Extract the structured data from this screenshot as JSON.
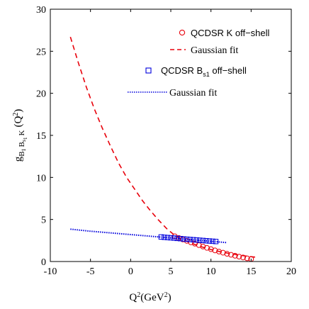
{
  "chart_data": {
    "type": "line",
    "xlim": [
      -10,
      20
    ],
    "ylim": [
      0,
      30
    ],
    "x_ticks": [
      -10,
      -5,
      0,
      5,
      10,
      15,
      20
    ],
    "y_ticks": [
      0,
      5,
      10,
      15,
      20,
      25,
      30
    ],
    "x_tick_labels": [
      "-10",
      "-5",
      "0",
      "5",
      "10",
      "15",
      "20"
    ],
    "y_tick_labels": [
      "0",
      "5",
      "10",
      "15",
      "20",
      "25",
      "30"
    ],
    "xlabel": {
      "q": "Q",
      "sup": "2",
      "rest": "(GeV",
      "sup2": "2",
      "close": ")"
    },
    "ylabel": {
      "g": "g",
      "B1": "B",
      "one": "1",
      "Bs": "B",
      "s": "s",
      "one2": "1",
      "K": "K",
      "open": "(Q",
      "sup": "2",
      "close": ")"
    },
    "grid": false,
    "legend_placement": "top-right",
    "legend": {
      "k_markers": {
        "main": "QCDSR K off−shell"
      },
      "k_fit": {
        "main": "Gaussian fit"
      },
      "b_markers": {
        "pre": "QCDSR B",
        "sub": "s1",
        "post": " off−shell"
      },
      "b_fit": {
        "main": "Gaussian fit"
      }
    },
    "colors": {
      "red": "#e8000b",
      "blue": "#0000dd"
    },
    "series": [
      {
        "kind": "markers",
        "marker": "circle",
        "color": "#e8000b",
        "x": [
          5.5,
          6.0,
          6.5,
          7.0,
          7.5,
          8.0,
          8.5,
          9.0,
          9.5,
          10.0,
          10.5,
          11.0,
          11.5,
          12.0,
          12.5,
          13.0,
          13.5,
          14.0,
          14.5,
          15.0
        ],
        "y": [
          3.0,
          2.8,
          2.62,
          2.45,
          2.28,
          2.12,
          1.95,
          1.78,
          1.62,
          1.47,
          1.32,
          1.18,
          1.05,
          0.92,
          0.8,
          0.69,
          0.58,
          0.48,
          0.38,
          0.3
        ]
      },
      {
        "kind": "line",
        "style": "dashed",
        "color": "#e8000b",
        "x": [
          -7.5,
          -6.5,
          -5.5,
          -4.5,
          -3.5,
          -2.5,
          -1.5,
          -0.5,
          0.5,
          1.5,
          2.5,
          3.5,
          4.5,
          5.5,
          6.5,
          7.5,
          8.5,
          9.5,
          10.5,
          11.5,
          12.5,
          13.5,
          14.5,
          15.5
        ],
        "y": [
          26.7,
          23.6,
          20.7,
          18.1,
          15.8,
          13.7,
          11.7,
          10.0,
          8.6,
          7.2,
          6.0,
          4.9,
          3.9,
          3.1,
          2.6,
          2.2,
          1.85,
          1.55,
          1.3,
          1.1,
          0.92,
          0.76,
          0.63,
          0.52
        ]
      },
      {
        "kind": "markers",
        "marker": "square",
        "color": "#0000dd",
        "x": [
          3.8,
          4.2,
          4.6,
          5.0,
          5.4,
          5.8,
          6.2,
          6.6,
          7.0,
          7.4,
          7.8,
          8.2,
          8.6,
          9.0,
          9.4,
          9.8,
          10.2,
          10.6
        ],
        "y": [
          2.92,
          2.88,
          2.85,
          2.82,
          2.79,
          2.75,
          2.72,
          2.68,
          2.65,
          2.62,
          2.59,
          2.56,
          2.53,
          2.5,
          2.47,
          2.44,
          2.41,
          2.38
        ]
      },
      {
        "kind": "line",
        "style": "dotted",
        "color": "#0000dd",
        "x": [
          -7.5,
          -5,
          -2.5,
          0,
          2.5,
          5,
          7.5,
          10,
          12
        ],
        "y": [
          3.85,
          3.6,
          3.4,
          3.2,
          3.0,
          2.8,
          2.6,
          2.4,
          2.25
        ]
      }
    ]
  }
}
